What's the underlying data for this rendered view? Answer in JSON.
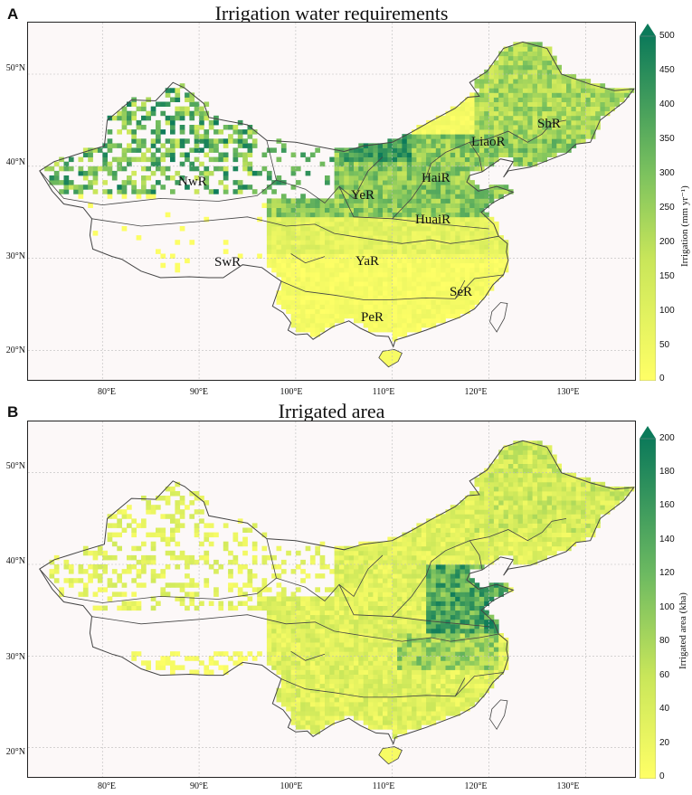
{
  "panels": [
    {
      "letter": "A",
      "title": "Irrigation water requirements",
      "colorbar": {
        "label": "Irrigation (mm yr⁻¹)",
        "ticks": [
          "500",
          "450",
          "400",
          "350",
          "300",
          "250",
          "200",
          "150",
          "100",
          "50",
          "0"
        ],
        "min": 0,
        "max": 500,
        "extend": "max"
      },
      "regions": [
        "NwR",
        "YeR",
        "HaiR",
        "LiaoR",
        "ShR",
        "HuaiR",
        "SwR",
        "YaR",
        "SeR",
        "PeR"
      ]
    },
    {
      "letter": "B",
      "title": "Irrigated area",
      "colorbar": {
        "label": "Irrigated area (kha)",
        "ticks": [
          "200",
          "180",
          "160",
          "140",
          "120",
          "100",
          "80",
          "60",
          "40",
          "20",
          "0"
        ],
        "min": 0,
        "max": 200,
        "extend": "max"
      }
    }
  ],
  "axes": {
    "lon_ticks": [
      "80°E",
      "90°E",
      "100°E",
      "110°E",
      "120°E",
      "130°E"
    ],
    "lat_ticks": [
      "50°N",
      "40°N",
      "30°N",
      "20°N"
    ]
  },
  "colors": {
    "low": "#ffff66",
    "mid": "#9fd05a",
    "high": "#0c7a5a",
    "background": "#fcf8f8",
    "border": "#444444",
    "grid": "#bbbbbb"
  }
}
